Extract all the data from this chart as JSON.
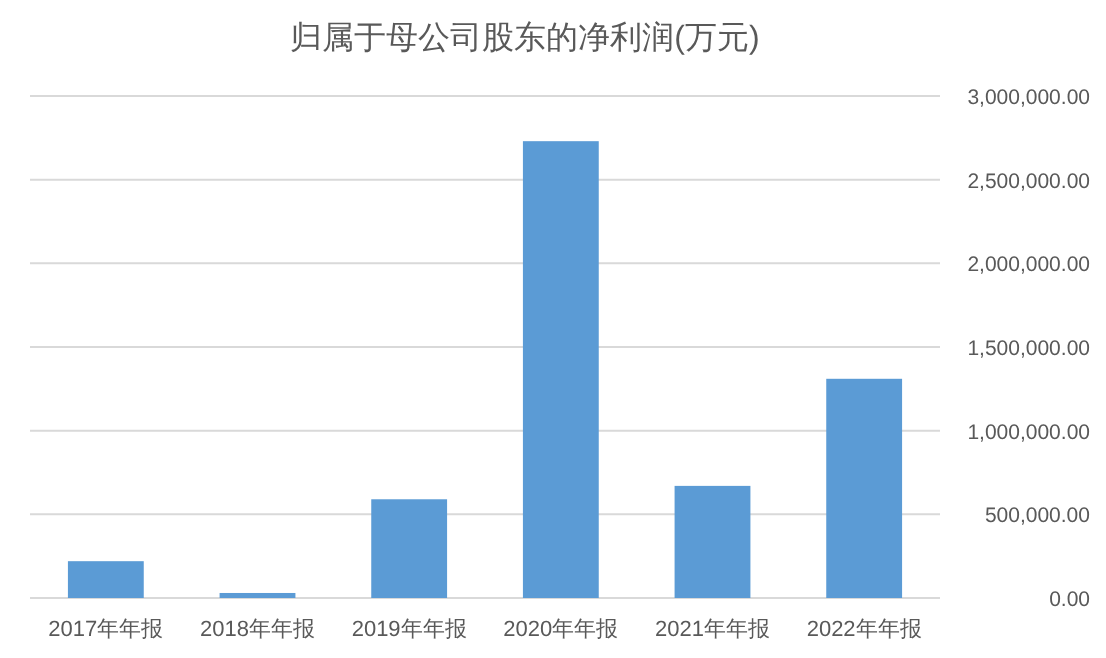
{
  "chart_data": {
    "type": "bar",
    "title": "归属于母公司股东的净利润(万元)",
    "categories": [
      "2017年年报",
      "2018年年报",
      "2019年年报",
      "2020年年报",
      "2021年年报",
      "2022年年报"
    ],
    "values": [
      220000,
      30000,
      590000,
      2730000,
      670000,
      1310000
    ],
    "color": "#5b9bd5",
    "ylim": [
      0,
      3000000
    ],
    "yticks": [
      {
        "value": 0,
        "label": "0.00"
      },
      {
        "value": 500000,
        "label": "500,000.00"
      },
      {
        "value": 1000000,
        "label": "1,000,000.00"
      },
      {
        "value": 1500000,
        "label": "1,500,000.00"
      },
      {
        "value": 2000000,
        "label": "2,000,000.00"
      },
      {
        "value": 2500000,
        "label": "2,500,000.00"
      },
      {
        "value": 3000000,
        "label": "3,000,000.00"
      }
    ],
    "grid": "y"
  }
}
